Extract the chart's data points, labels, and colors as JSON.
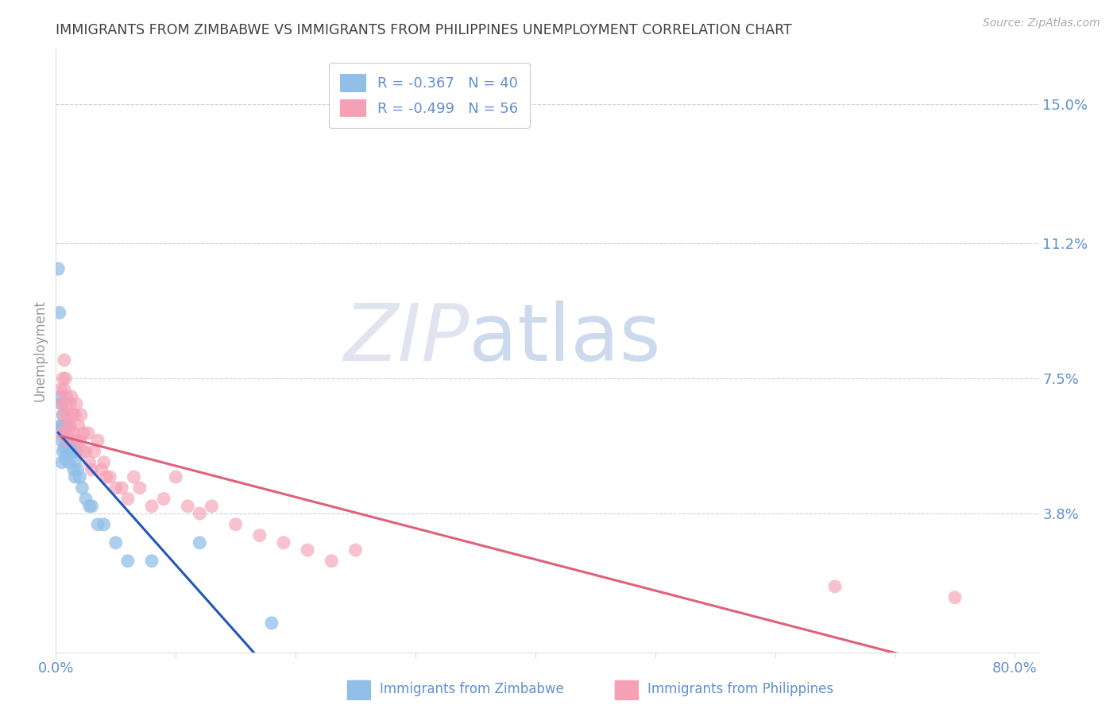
{
  "title": "IMMIGRANTS FROM ZIMBABWE VS IMMIGRANTS FROM PHILIPPINES UNEMPLOYMENT CORRELATION CHART",
  "source": "Source: ZipAtlas.com",
  "ylabel": "Unemployment",
  "xlim": [
    0.0,
    0.82
  ],
  "ylim": [
    0.0,
    0.165
  ],
  "ytick_positions": [
    0.038,
    0.075,
    0.112,
    0.15
  ],
  "ytick_labels": [
    "3.8%",
    "7.5%",
    "11.2%",
    "15.0%"
  ],
  "xtick_positions": [
    0.0,
    0.1,
    0.2,
    0.3,
    0.4,
    0.5,
    0.6,
    0.7,
    0.8
  ],
  "xtick_labels_show": [
    "0.0%",
    "",
    "",
    "",
    "",
    "",
    "",
    "",
    "80.0%"
  ],
  "color_zimbabwe": "#92bfe8",
  "color_philippines": "#f5a0b5",
  "line_color_zimbabwe": "#2255bb",
  "line_color_philippines": "#e0607a",
  "background_color": "#ffffff",
  "grid_color": "#cccccc",
  "tick_color": "#6090d0",
  "title_color": "#404040",
  "legend_label1": "Immigrants from Zimbabwe",
  "legend_label2": "Immigrants from Philippines",
  "R_zimbabwe": -0.367,
  "N_zimbabwe": 40,
  "R_philippines": -0.499,
  "N_philippines": 56,
  "zimbabwe_x": [
    0.002,
    0.003,
    0.004,
    0.004,
    0.005,
    0.005,
    0.005,
    0.005,
    0.006,
    0.006,
    0.006,
    0.007,
    0.007,
    0.008,
    0.008,
    0.009,
    0.01,
    0.01,
    0.011,
    0.011,
    0.012,
    0.013,
    0.014,
    0.015,
    0.016,
    0.016,
    0.017,
    0.018,
    0.02,
    0.022,
    0.025,
    0.028,
    0.03,
    0.035,
    0.04,
    0.05,
    0.06,
    0.08,
    0.12,
    0.18
  ],
  "zimbabwe_y": [
    0.105,
    0.093,
    0.07,
    0.062,
    0.068,
    0.062,
    0.058,
    0.052,
    0.065,
    0.06,
    0.055,
    0.062,
    0.056,
    0.058,
    0.053,
    0.055,
    0.062,
    0.057,
    0.055,
    0.052,
    0.055,
    0.058,
    0.055,
    0.05,
    0.052,
    0.048,
    0.055,
    0.05,
    0.048,
    0.045,
    0.042,
    0.04,
    0.04,
    0.035,
    0.035,
    0.03,
    0.025,
    0.025,
    0.03,
    0.008
  ],
  "philippines_x": [
    0.004,
    0.005,
    0.005,
    0.006,
    0.006,
    0.007,
    0.007,
    0.008,
    0.008,
    0.009,
    0.009,
    0.01,
    0.01,
    0.011,
    0.012,
    0.012,
    0.013,
    0.014,
    0.015,
    0.016,
    0.017,
    0.018,
    0.019,
    0.02,
    0.021,
    0.022,
    0.023,
    0.025,
    0.027,
    0.028,
    0.03,
    0.032,
    0.035,
    0.038,
    0.04,
    0.042,
    0.045,
    0.05,
    0.055,
    0.06,
    0.065,
    0.07,
    0.08,
    0.09,
    0.1,
    0.11,
    0.12,
    0.13,
    0.15,
    0.17,
    0.19,
    0.21,
    0.23,
    0.25,
    0.65,
    0.75
  ],
  "philippines_y": [
    0.072,
    0.068,
    0.06,
    0.075,
    0.065,
    0.08,
    0.072,
    0.075,
    0.068,
    0.07,
    0.062,
    0.065,
    0.058,
    0.06,
    0.068,
    0.062,
    0.07,
    0.065,
    0.06,
    0.065,
    0.068,
    0.058,
    0.062,
    0.058,
    0.065,
    0.055,
    0.06,
    0.055,
    0.06,
    0.052,
    0.05,
    0.055,
    0.058,
    0.05,
    0.052,
    0.048,
    0.048,
    0.045,
    0.045,
    0.042,
    0.048,
    0.045,
    0.04,
    0.042,
    0.048,
    0.04,
    0.038,
    0.04,
    0.035,
    0.032,
    0.03,
    0.028,
    0.025,
    0.028,
    0.018,
    0.015
  ],
  "zip_watermark_zip_color": "#c8cfe0",
  "zip_watermark_atlas_color": "#a8c0e0"
}
